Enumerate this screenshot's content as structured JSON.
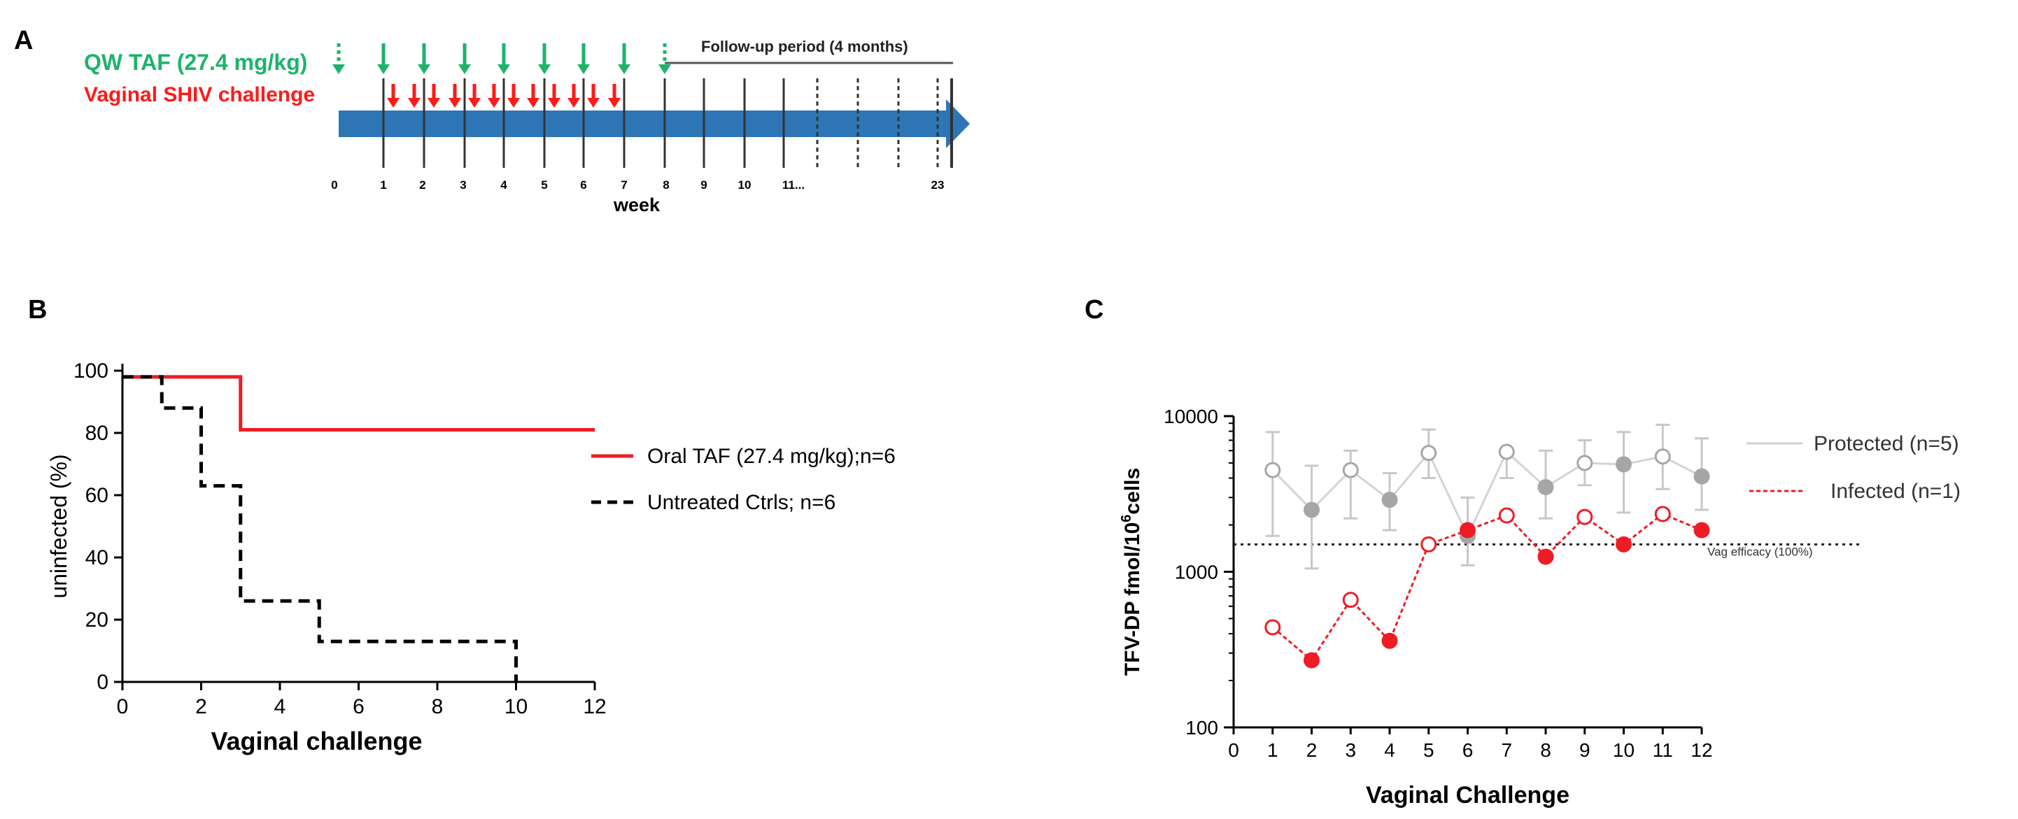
{
  "figure": {
    "panel_a": {
      "letter": "A",
      "dose_label": "QW TAF (27.4 mg/kg)",
      "challenge_label": "Vaginal SHIV challenge",
      "followup_label": "Follow-up period (4 months)",
      "week_label": "week",
      "tick_labels": [
        "0",
        "1",
        "2",
        "3",
        "4",
        "5",
        "6",
        "7",
        "8",
        "9",
        "10",
        "11...",
        "23"
      ],
      "colors": {
        "dose": "#1db36b",
        "challenge": "#ff1a1a",
        "bar": "#2e75b6"
      }
    },
    "panel_b": {
      "letter": "B"
    },
    "panel_c": {
      "letter": "C",
      "threshold_label": "Vag efficacy (100%)"
    }
  },
  "chart_data": [
    {
      "id": "panel-b",
      "type": "line",
      "subtype": "step",
      "xlabel": "Vaginal challenge",
      "ylabel": "uninfected (%)",
      "xlim": [
        0,
        12
      ],
      "ylim": [
        0,
        100
      ],
      "xticks": [
        0,
        2,
        4,
        6,
        8,
        10,
        12
      ],
      "yticks": [
        0,
        20,
        40,
        60,
        80,
        100
      ],
      "legend_position": "right",
      "series": [
        {
          "name": "Oral TAF (27.4 mg/kg);n=6",
          "style": "solid",
          "color": "#ee1c25",
          "points": [
            [
              0,
              98
            ],
            [
              3,
              98
            ],
            [
              3,
              81
            ],
            [
              12,
              81
            ]
          ]
        },
        {
          "name": "Untreated Ctrls; n=6",
          "style": "dashed",
          "color": "#000000",
          "points": [
            [
              0,
              98
            ],
            [
              1,
              98
            ],
            [
              1,
              88
            ],
            [
              2,
              88
            ],
            [
              2,
              63
            ],
            [
              3,
              63
            ],
            [
              3,
              26
            ],
            [
              5,
              26
            ],
            [
              5,
              13
            ],
            [
              10,
              13
            ],
            [
              10,
              0
            ]
          ]
        }
      ]
    },
    {
      "id": "panel-c",
      "type": "line",
      "yscale": "log",
      "xlabel": "Vaginal Challenge",
      "ylabel": "TFV-DP fmol/10",
      "ylabel_superscript": "6",
      "ylabel_suffix": "cells",
      "xlim": [
        0,
        12
      ],
      "ylim": [
        100,
        10000
      ],
      "xticks": [
        0,
        1,
        2,
        3,
        4,
        5,
        6,
        7,
        8,
        9,
        10,
        11,
        12
      ],
      "yticks": [
        100,
        1000,
        10000
      ],
      "threshold": 1500,
      "legend_position": "right",
      "series": [
        {
          "name": "Protected (n=5)",
          "color": "#bfbfbf",
          "x": [
            1,
            2,
            3,
            4,
            5,
            6,
            7,
            8,
            9,
            10,
            11,
            12
          ],
          "y": [
            4500,
            2500,
            4500,
            2900,
            5800,
            1700,
            5900,
            3500,
            5000,
            4900,
            5500,
            4100
          ],
          "err_high": [
            7900,
            4800,
            6000,
            4300,
            8200,
            3000,
            6000,
            6000,
            7000,
            7900,
            8800,
            7200
          ],
          "err_low": [
            1700,
            1050,
            2200,
            1850,
            4000,
            1100,
            4000,
            2200,
            3600,
            2400,
            3400,
            2500
          ],
          "filled": [
            false,
            true,
            false,
            true,
            false,
            true,
            false,
            true,
            false,
            true,
            false,
            true
          ]
        },
        {
          "name": "Infected (n=1)",
          "color": "#ee1c25",
          "x": [
            1,
            2,
            3,
            4,
            5,
            6,
            7,
            8,
            9,
            10,
            11,
            12
          ],
          "y": [
            440,
            270,
            660,
            360,
            1500,
            1850,
            2300,
            1250,
            2250,
            1500,
            2350,
            1850
          ],
          "filled": [
            false,
            true,
            false,
            true,
            false,
            true,
            false,
            true,
            false,
            true,
            false,
            true
          ]
        }
      ]
    }
  ]
}
